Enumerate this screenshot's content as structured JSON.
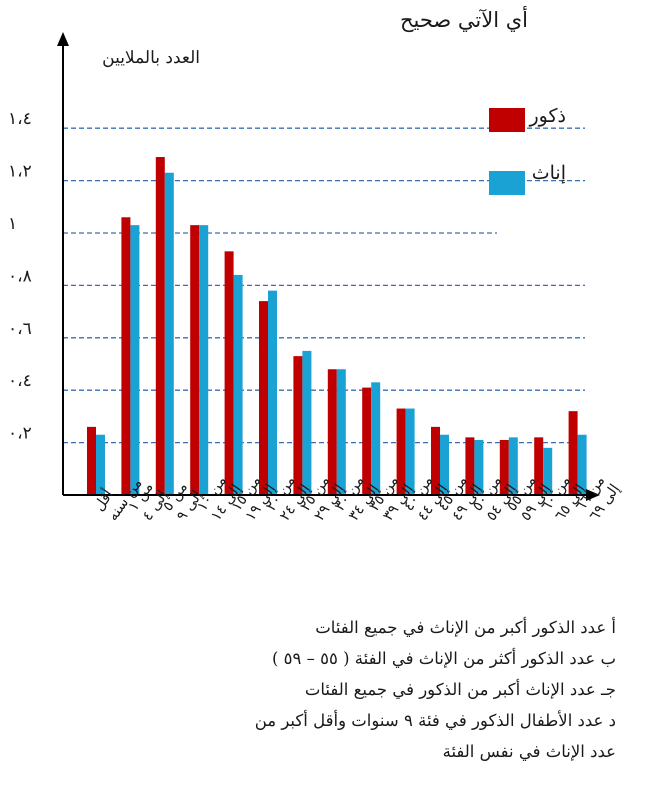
{
  "question": "أي الآتي صحيح",
  "legend": {
    "males_label": "ذكور",
    "females_label": "إناث",
    "males_color": "#c00000",
    "females_color": "#1aa2d4"
  },
  "options": [
    "أ  عدد الذكور أكبر من الإناث في جميع الفئات",
    "ب  عدد الذكور أكثر من الإناث في الفئة ( ٥٥ – ٥٩ )",
    "جـ عدد الإناث أكبر من الذكور في جميع الفئات",
    "د  عدد الأطفال الذكور في فئة ٩ سنوات وأقل أكبر من عدد الإناث في نفس الفئة"
  ],
  "chart_data": {
    "type": "bar",
    "ylabel": "العدد بالملايين",
    "ylim": [
      0,
      1.45
    ],
    "yticks": [
      0.2,
      0.4,
      0.6,
      0.8,
      1.0,
      1.2,
      1.4
    ],
    "ytick_labels": [
      "٠،٢",
      "٠،٤",
      "٠،٦",
      "٠،٨",
      "١",
      "١،٢",
      "١،٤"
    ],
    "grid": "horizontal dashed",
    "legend_position": "right",
    "categories": [
      "أقل من سنه",
      "من ١ إلى ٤",
      "من ٥ إلى ٩",
      "من ١٠ إلى ١٤",
      "من ١٥ إلى ١٩",
      "من ٢٠ إلى ٢٤",
      "من ٢٥ إلى ٢٩",
      "من ٣٠ إلى ٣٤",
      "من ٣٥ إلى ٣٩",
      "من ٤٠ إلى ٤٤",
      "من ٤٥ إلى ٤٩",
      "من ٥٠ إلى ٥٤",
      "من ٥٥ إلى ٥٩",
      "من ٦٠ إلى ٦٥",
      "من ٦٦ إلى ٦٩"
    ],
    "series": [
      {
        "name": "ذكور",
        "values": [
          0.26,
          1.06,
          1.29,
          1.03,
          0.93,
          0.74,
          0.53,
          0.48,
          0.41,
          0.33,
          0.26,
          0.22,
          0.21,
          0.22,
          0.32
        ]
      },
      {
        "name": "إناث",
        "values": [
          0.23,
          1.03,
          1.23,
          1.03,
          0.84,
          0.78,
          0.55,
          0.48,
          0.43,
          0.33,
          0.23,
          0.21,
          0.22,
          0.18,
          0.23
        ]
      }
    ]
  }
}
